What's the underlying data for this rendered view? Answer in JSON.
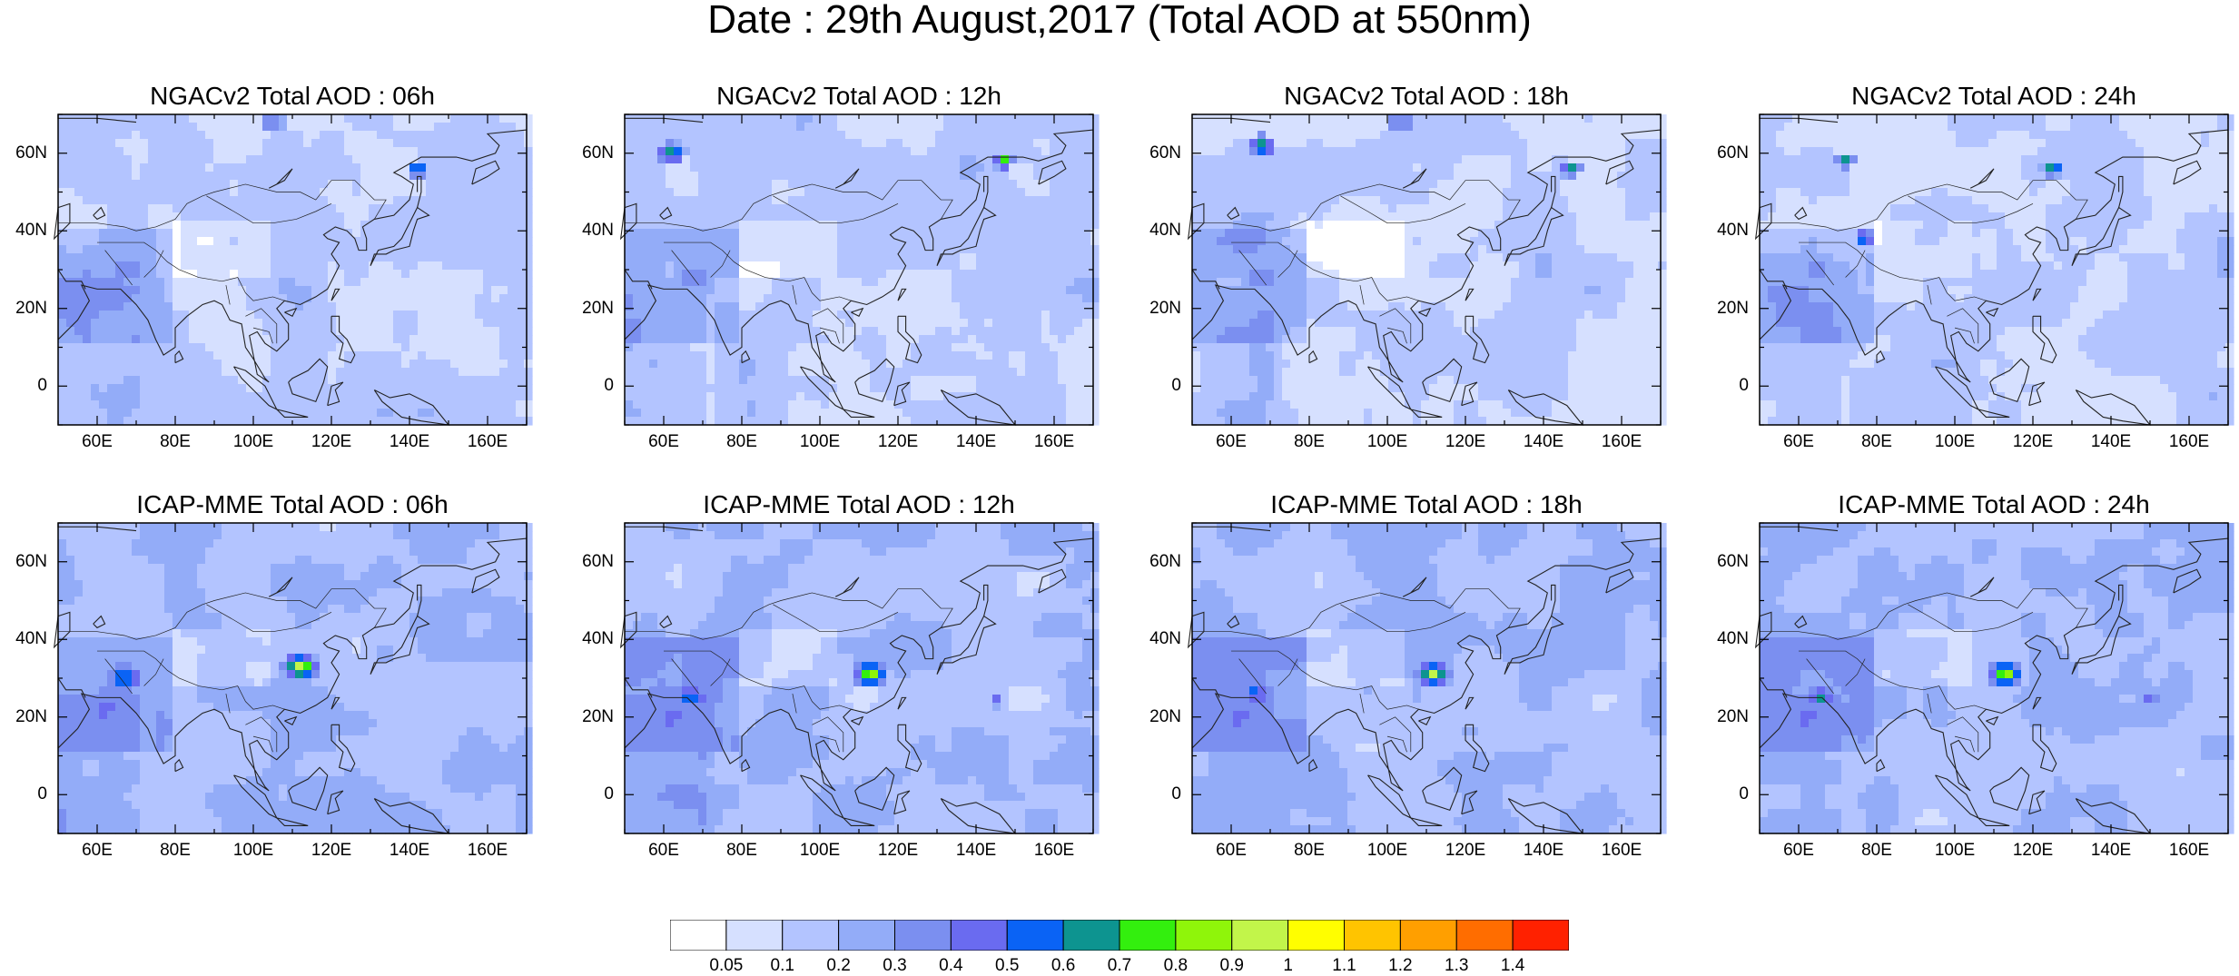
{
  "title": "Date : 29th August,2017 (Total AOD at 550nm)",
  "panels": [
    {
      "title": "NGACv2 Total AOD : 06h"
    },
    {
      "title": "NGACv2 Total AOD : 12h"
    },
    {
      "title": "NGACv2 Total AOD : 18h"
    },
    {
      "title": "NGACv2 Total AOD : 24h"
    },
    {
      "title": "ICAP-MME Total AOD : 06h"
    },
    {
      "title": "ICAP-MME Total AOD : 12h"
    },
    {
      "title": "ICAP-MME Total AOD : 18h"
    },
    {
      "title": "ICAP-MME Total AOD : 24h"
    }
  ],
  "lat_ticks": [
    "60N",
    "40N",
    "20N",
    "0"
  ],
  "lon_ticks": [
    "60E",
    "80E",
    "100E",
    "120E",
    "140E",
    "160E"
  ],
  "colorbar": {
    "labels": [
      "0.05",
      "0.1",
      "0.2",
      "0.3",
      "0.4",
      "0.5",
      "0.6",
      "0.7",
      "0.8",
      "0.9",
      "1",
      "1.1",
      "1.2",
      "1.3",
      "1.4"
    ],
    "colors": [
      "#ffffff",
      "#d6e0ff",
      "#b3c4ff",
      "#93acf8",
      "#7b8ff0",
      "#6a6bf0",
      "#0a63f5",
      "#0d9490",
      "#33ef0e",
      "#8ff50a",
      "#c2f54a",
      "#fffe00",
      "#ffc400",
      "#ff9f00",
      "#ff6d00",
      "#ff2100"
    ]
  }
}
